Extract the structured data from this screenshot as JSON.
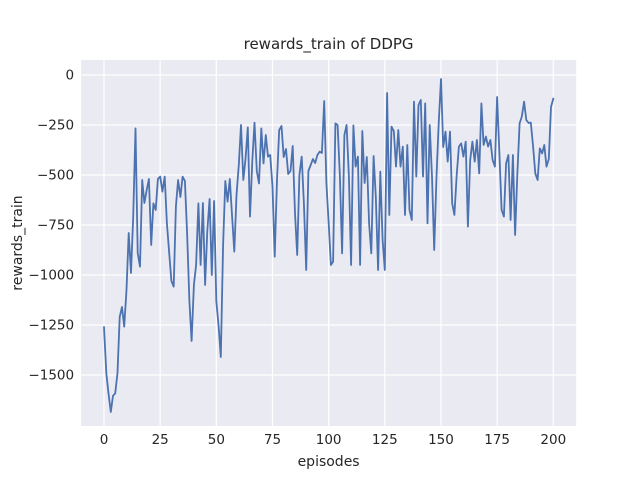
{
  "figure": {
    "title": "rewards_train of DDPG",
    "xlabel": "episodes",
    "ylabel": "rewards_train"
  },
  "chart_data": {
    "type": "line",
    "title": "rewards_train of DDPG",
    "xlabel": "episodes",
    "ylabel": "rewards_train",
    "legend": false,
    "grid": true,
    "xlim": [
      -10.2,
      210.2
    ],
    "ylim": [
      -1755,
      75
    ],
    "x_ticks": [
      0,
      25,
      50,
      75,
      100,
      125,
      150,
      175,
      200
    ],
    "x_tick_labels": [
      "0",
      "25",
      "50",
      "75",
      "100",
      "125",
      "150",
      "175",
      "200"
    ],
    "y_ticks": [
      0,
      -250,
      -500,
      -750,
      -1000,
      -1250,
      -1500
    ],
    "y_tick_labels": [
      "0",
      "−250",
      "−500",
      "−750",
      "−1000",
      "−1250",
      "−1500"
    ],
    "style": {
      "figure_bg": "#ffffff",
      "axes_bg": "#EAEAF2",
      "grid_color": "#ffffff",
      "line_color": "#4C72B0",
      "text_color": "#262626"
    },
    "series": [
      {
        "name": "rewards_train",
        "color": "#4C72B0",
        "x_start": 0,
        "x_step": 1,
        "y": [
          -1260,
          -1490,
          -1592,
          -1685,
          -1604,
          -1592,
          -1490,
          -1210,
          -1160,
          -1258,
          -1075,
          -790,
          -990,
          -710,
          -267,
          -890,
          -958,
          -525,
          -640,
          -575,
          -520,
          -850,
          -642,
          -675,
          -520,
          -508,
          -583,
          -508,
          -742,
          -890,
          -1030,
          -1058,
          -658,
          -525,
          -610,
          -508,
          -530,
          -790,
          -1130,
          -1330,
          -1050,
          -950,
          -642,
          -950,
          -640,
          -1050,
          -780,
          -620,
          -1000,
          -630,
          -1130,
          -1255,
          -1410,
          -850,
          -530,
          -633,
          -520,
          -708,
          -883,
          -600,
          -450,
          -250,
          -525,
          -420,
          -262,
          -708,
          -430,
          -238,
          -480,
          -542,
          -267,
          -442,
          -300,
          -408,
          -400,
          -558,
          -908,
          -525,
          -275,
          -255,
          -410,
          -370,
          -495,
          -480,
          -355,
          -692,
          -900,
          -500,
          -408,
          -642,
          -975,
          -480,
          -450,
          -420,
          -440,
          -400,
          -383,
          -390,
          -130,
          -540,
          -742,
          -950,
          -933,
          -242,
          -250,
          -508,
          -892,
          -300,
          -250,
          -508,
          -950,
          -252,
          -458,
          -408,
          -950,
          -280,
          -540,
          -410,
          -742,
          -892,
          -405,
          -608,
          -975,
          -483,
          -825,
          -975,
          -90,
          -700,
          -258,
          -280,
          -458,
          -275,
          -458,
          -358,
          -700,
          -350,
          -675,
          -725,
          -133,
          -508,
          -150,
          -125,
          -508,
          -142,
          -742,
          -250,
          -508,
          -875,
          -508,
          -242,
          -20,
          -360,
          -283,
          -433,
          -283,
          -642,
          -700,
          -500,
          -358,
          -342,
          -408,
          -333,
          -758,
          -425,
          -333,
          -433,
          -325,
          -492,
          -142,
          -350,
          -308,
          -358,
          -325,
          -425,
          -458,
          -110,
          -392,
          -675,
          -708,
          -442,
          -400,
          -725,
          -400,
          -800,
          -500,
          -242,
          -208,
          -133,
          -225,
          -240,
          -238,
          -358,
          -492,
          -525,
          -367,
          -392,
          -350,
          -458,
          -420,
          -160,
          -118
        ]
      }
    ]
  }
}
